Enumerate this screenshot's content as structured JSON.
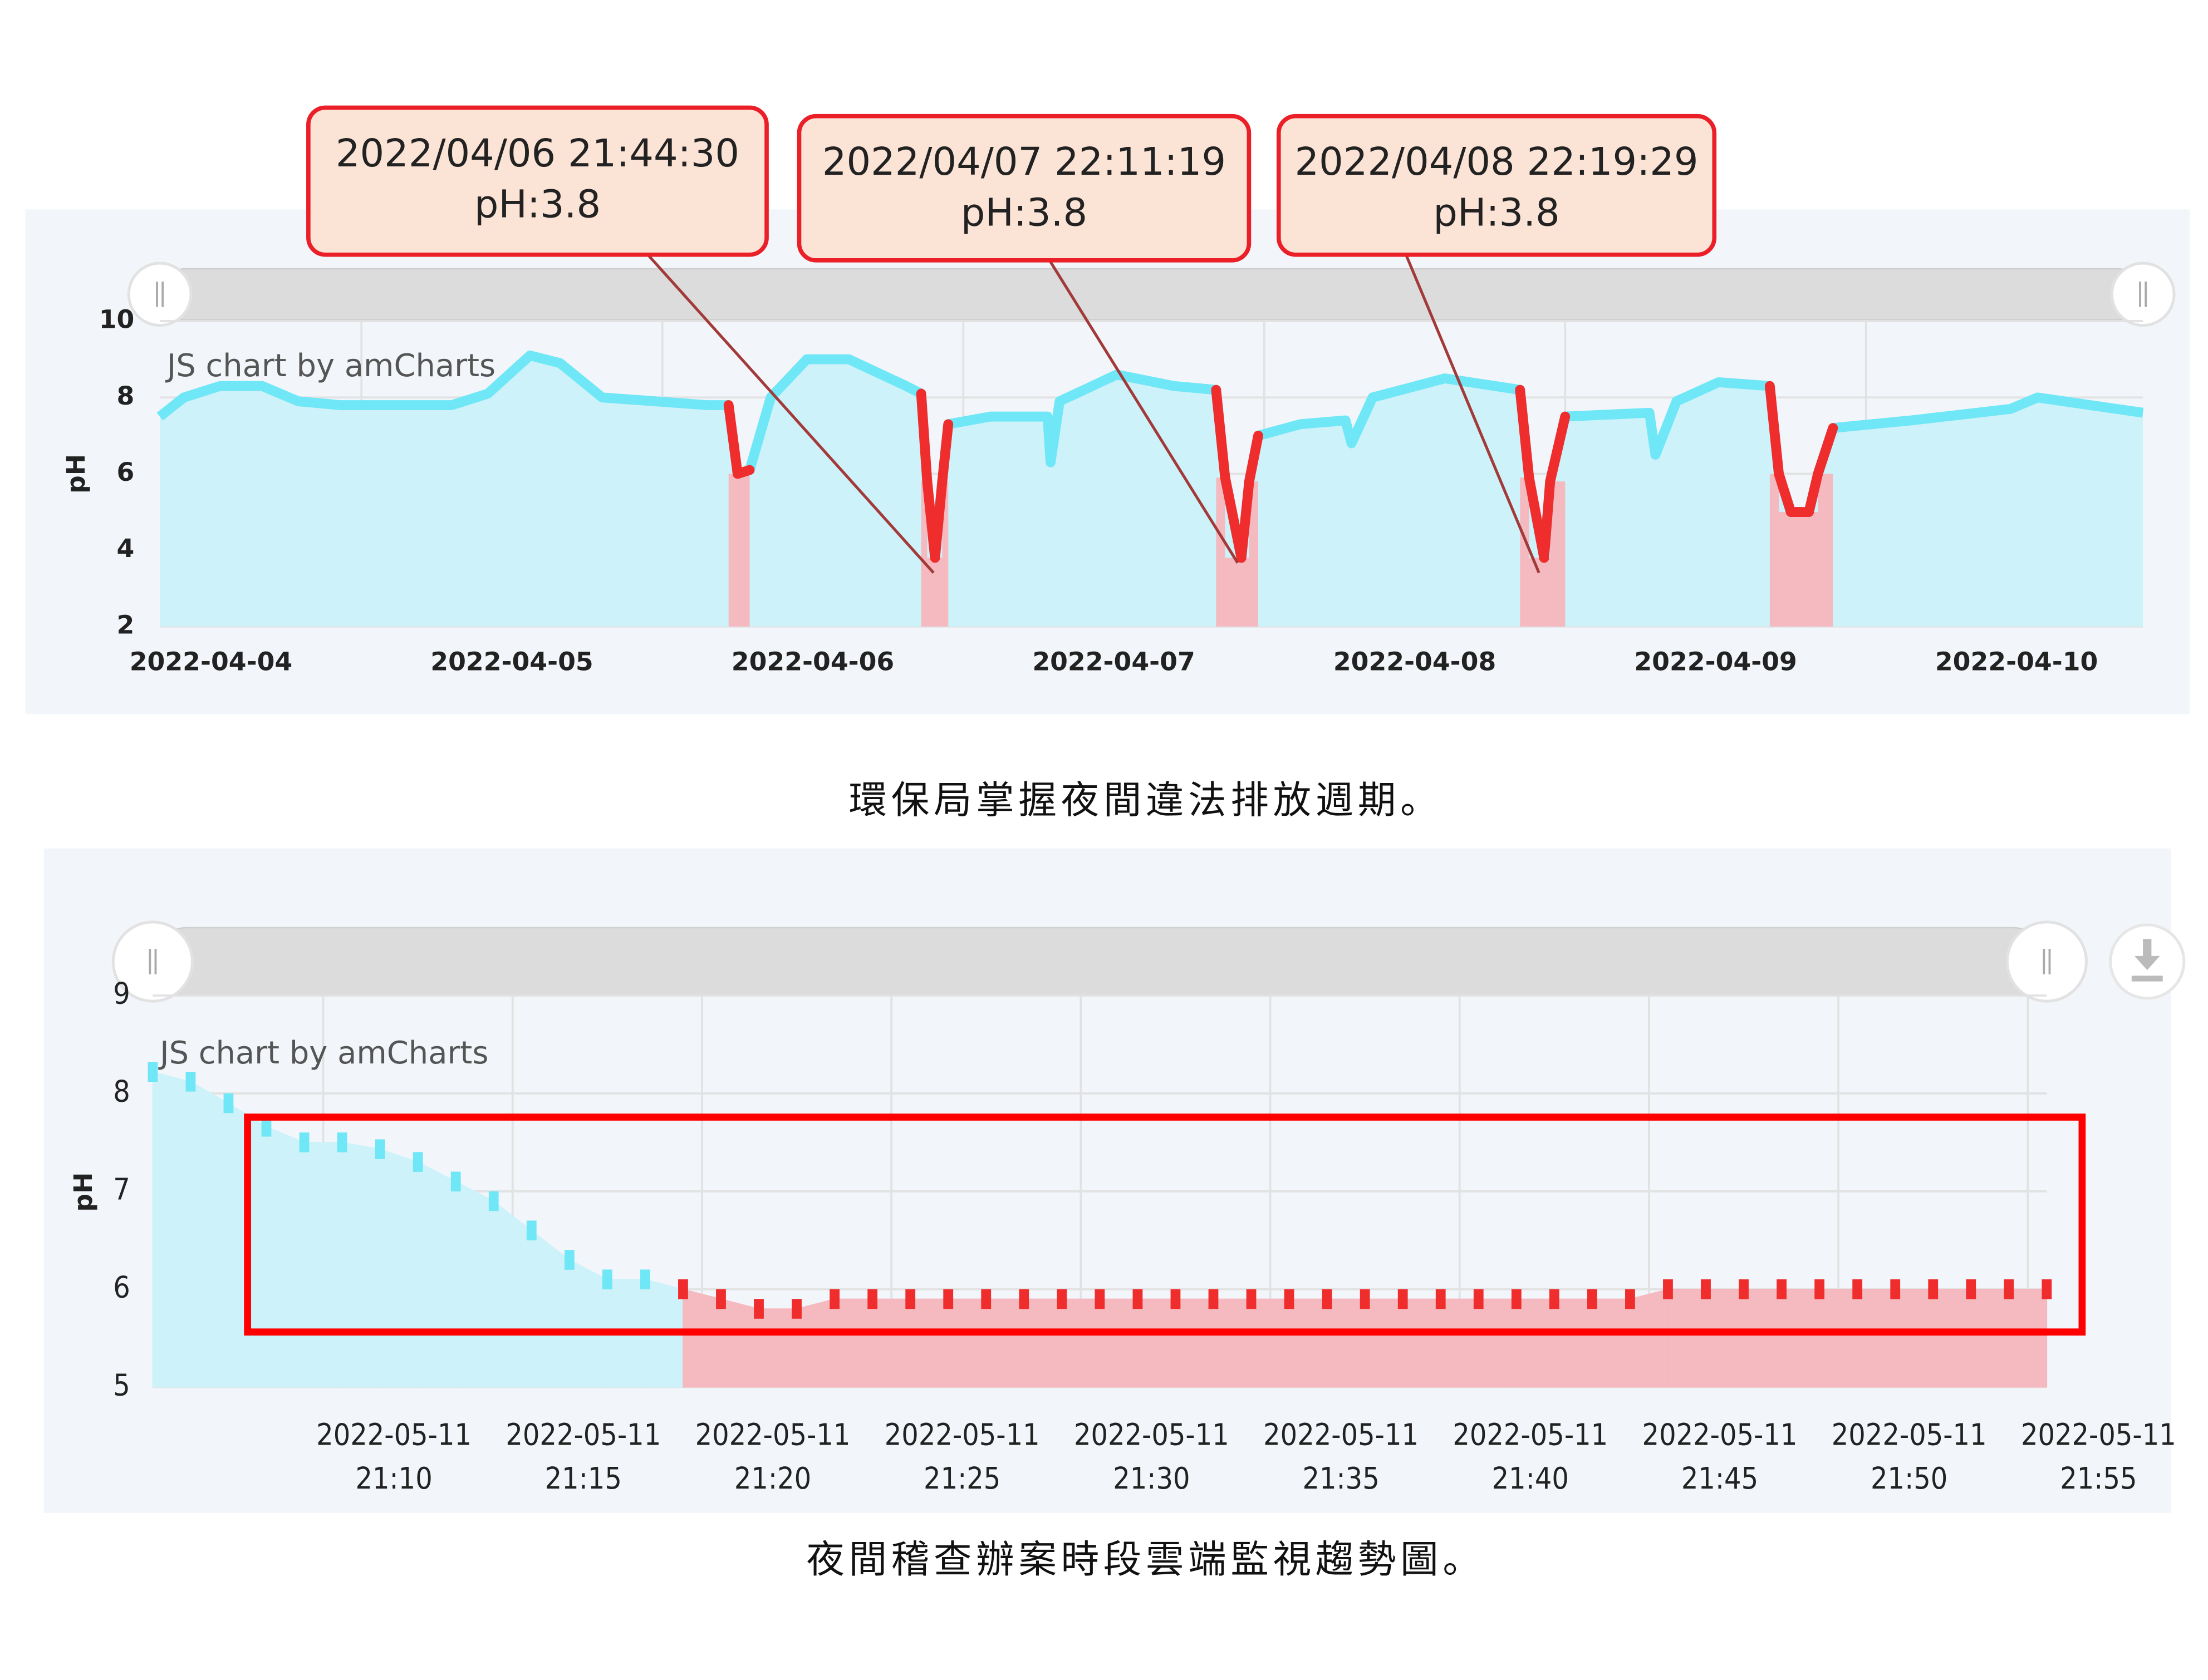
{
  "chart_data": [
    {
      "type": "area",
      "y_label": "pH",
      "watermark": "JS chart by amCharts",
      "caption": "環保局掌握夜間違法排放週期。",
      "x": [
        0.33,
        0.41,
        0.53,
        0.67,
        0.79,
        0.93,
        1.3,
        1.42,
        1.56,
        1.66,
        1.8,
        2.15,
        2.22,
        2.25,
        2.29,
        2.36,
        2.48,
        2.62,
        2.81,
        2.86,
        2.88,
        2.906,
        2.93,
        2.95,
        3.09,
        3.28,
        3.29,
        3.32,
        3.51,
        3.7,
        3.84,
        3.87,
        3.924,
        3.95,
        3.98,
        4.12,
        4.27,
        4.29,
        4.36,
        4.6,
        4.85,
        4.88,
        4.93,
        4.95,
        5.0,
        5.28,
        5.3,
        5.37,
        5.51,
        5.68,
        5.71,
        5.75,
        5.81,
        5.84,
        5.89,
        6.15,
        6.48,
        6.57,
        6.92
      ],
      "values": [
        7.5,
        8.0,
        8.3,
        8.3,
        7.9,
        7.8,
        7.8,
        8.1,
        9.1,
        8.9,
        8.0,
        7.8,
        7.8,
        6.0,
        6.1,
        8.0,
        9.0,
        9.0,
        8.3,
        8.1,
        5.8,
        3.8,
        5.8,
        7.3,
        7.5,
        7.5,
        6.3,
        7.9,
        8.6,
        8.3,
        8.2,
        5.9,
        3.8,
        5.8,
        7.0,
        7.3,
        7.4,
        6.8,
        8.0,
        8.5,
        8.2,
        5.9,
        3.8,
        5.8,
        7.5,
        7.6,
        6.5,
        7.9,
        8.4,
        8.3,
        6.0,
        5.0,
        5.0,
        6.0,
        7.2,
        7.4,
        7.7,
        8.0,
        7.6
      ],
      "xlim": [
        0.33,
        6.92
      ],
      "xticks": [
        {
          "value": 0,
          "label": "2022-04-04"
        },
        {
          "value": 1,
          "label": "2022-04-05"
        },
        {
          "value": 2,
          "label": "2022-04-06"
        },
        {
          "value": 3,
          "label": "2022-04-07"
        },
        {
          "value": 4,
          "label": "2022-04-08"
        },
        {
          "value": 5,
          "label": "2022-04-09"
        },
        {
          "value": 6,
          "label": "2022-04-10"
        }
      ],
      "ylim": [
        2,
        10
      ],
      "yticks": [
        2,
        4,
        6,
        8,
        10
      ],
      "grid": true,
      "threshold": 6,
      "color": "#6fe7f6",
      "area_color": "#cdf2f9",
      "alert_color": "#ef2d2d",
      "alert_area_color": "#f5b9c0",
      "annotations": [
        {
          "lines": [
            "2022/04/06 21:44:30",
            "pH:3.8"
          ]
        },
        {
          "lines": [
            "2022/04/07 22:11:19",
            "pH:3.8"
          ]
        },
        {
          "lines": [
            "2022/04/08 22:19:29",
            "pH:3.8"
          ]
        }
      ]
    },
    {
      "type": "dot-area",
      "y_label": "pH",
      "watermark": "JS chart by amCharts",
      "caption": "夜間稽查辦案時段雲端監視趨勢圖。",
      "x": [
        5.5,
        6.5,
        7.5,
        8.5,
        9.5,
        10.5,
        11.5,
        12.5,
        13.5,
        14.5,
        15.5,
        16.5,
        17.5,
        18.5,
        19.5,
        20.5,
        21.5,
        22.5,
        23.5,
        24.5,
        25.5,
        26.5,
        27.5,
        28.5,
        29.5,
        30.5,
        31.5,
        32.5,
        33.5,
        34.5,
        35.5,
        36.5,
        37.5,
        38.5,
        39.5,
        40.5,
        41.5,
        42.5,
        43.5,
        44.5,
        45.5,
        46.5,
        47.5,
        48.5,
        49.5,
        50.5,
        51.5,
        52.5,
        53.5,
        54.5,
        55.5
      ],
      "values": [
        8.22,
        8.12,
        7.9,
        7.66,
        7.5,
        7.5,
        7.43,
        7.3,
        7.1,
        6.9,
        6.6,
        6.3,
        6.1,
        6.1,
        6.0,
        5.9,
        5.8,
        5.8,
        5.9,
        5.9,
        5.9,
        5.9,
        5.9,
        5.9,
        5.9,
        5.9,
        5.9,
        5.9,
        5.9,
        5.9,
        5.9,
        5.9,
        5.9,
        5.9,
        5.9,
        5.9,
        5.9,
        5.9,
        5.9,
        5.9,
        6.0,
        6.0,
        6.0,
        6.0,
        6.0,
        6.0,
        6.0,
        6.0,
        6.0,
        6.0,
        6.0
      ],
      "xlim": [
        5.5,
        55.5
      ],
      "xticks": [
        {
          "value": 10,
          "label": [
            "2022-05-11",
            "21:10"
          ]
        },
        {
          "value": 15,
          "label": [
            "2022-05-11",
            "21:15"
          ]
        },
        {
          "value": 20,
          "label": [
            "2022-05-11",
            "21:20"
          ]
        },
        {
          "value": 25,
          "label": [
            "2022-05-11",
            "21:25"
          ]
        },
        {
          "value": 30,
          "label": [
            "2022-05-11",
            "21:30"
          ]
        },
        {
          "value": 35,
          "label": [
            "2022-05-11",
            "21:35"
          ]
        },
        {
          "value": 40,
          "label": [
            "2022-05-11",
            "21:40"
          ]
        },
        {
          "value": 45,
          "label": [
            "2022-05-11",
            "21:45"
          ]
        },
        {
          "value": 50,
          "label": [
            "2022-05-11",
            "21:50"
          ]
        },
        {
          "value": 55,
          "label": [
            "2022-05-11",
            "21:55"
          ]
        }
      ],
      "ylim": [
        5,
        9
      ],
      "yticks": [
        5,
        6,
        7,
        8,
        9
      ],
      "grid": true,
      "threshold": 6,
      "color": "#6fe7f6",
      "area_color": "#cdf2f9",
      "alert_color": "#ef2d2d",
      "alert_area_color": "#f5b9c0"
    }
  ]
}
